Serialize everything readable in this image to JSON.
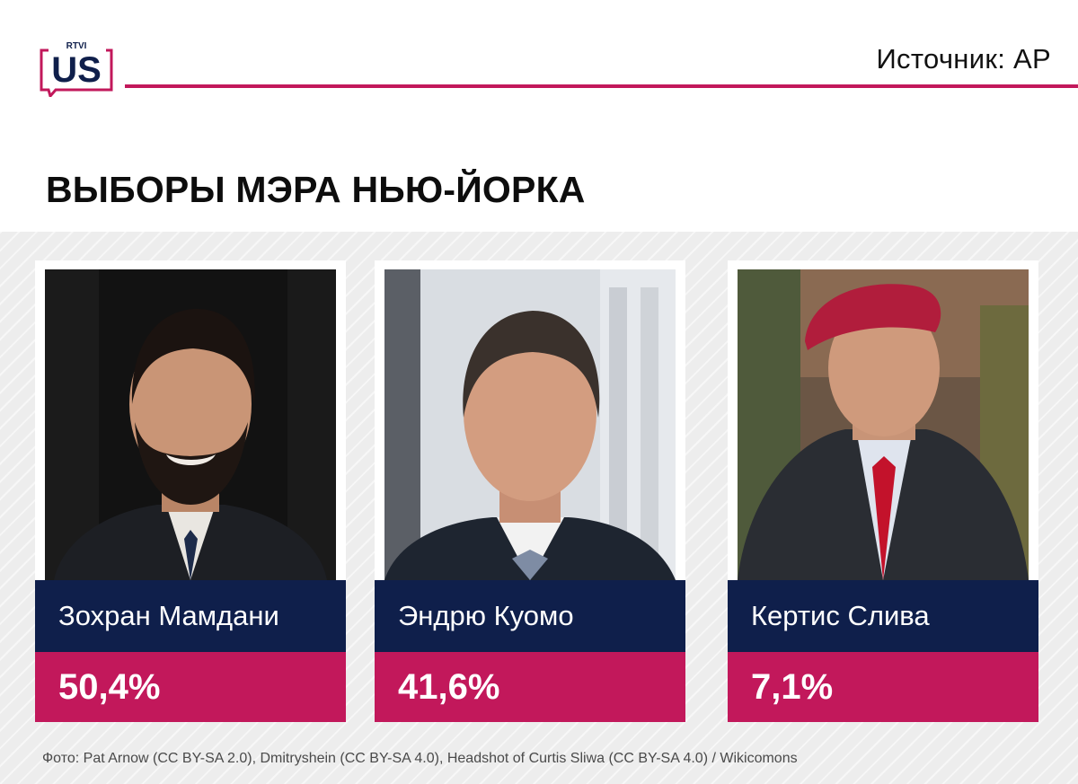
{
  "brand": {
    "logo_small": "RTVI",
    "logo_large": "US",
    "accent": "#c2185b",
    "navy": "#0f1f4b"
  },
  "header": {
    "source": "Источник: AP"
  },
  "title": "ВЫБОРЫ МЭРА НЬЮ-ЙОРКА",
  "candidates": [
    {
      "name": "Зохран Мамдани",
      "percent": "50,4%",
      "share": 50.4
    },
    {
      "name": "Эндрю Куомо",
      "percent": "41,6%",
      "share": 41.6
    },
    {
      "name": "Кертис Слива",
      "percent": "7,1%",
      "share": 7.1
    }
  ],
  "credit": "Фото: Pat Arnow (CC BY-SA 2.0), Dmitryshein (CC BY-SA 4.0), Headshot of Curtis Sliwa (CC BY-SA 4.0) / Wikicomons"
}
